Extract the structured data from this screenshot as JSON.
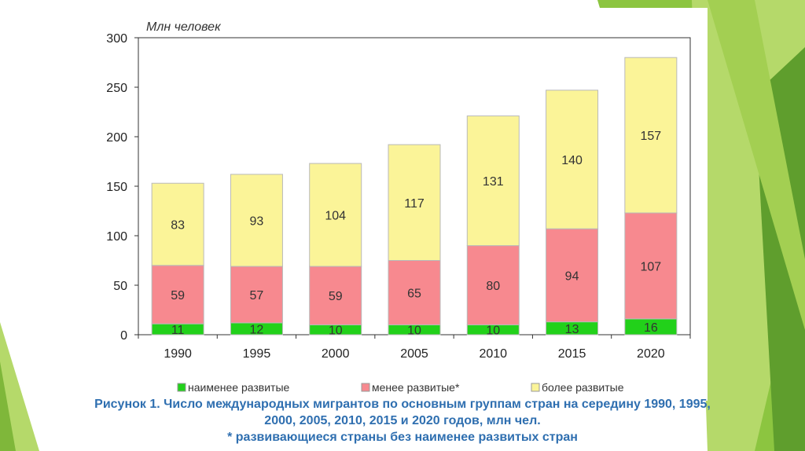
{
  "colors": {
    "background_green": "#8cc540",
    "band_light": "#b5d96a",
    "band_dark": "#5f9e2d",
    "least_developed": "#22d11a",
    "less_developed": "#f7898f",
    "more_developed": "#fbf498",
    "caption_text": "#2f6fb0"
  },
  "chart_data": {
    "type": "bar",
    "stacked": true,
    "ylabel": "Млн человек",
    "ylim": [
      0,
      300
    ],
    "yticks": [
      "0",
      "50",
      "100",
      "150",
      "200",
      "250",
      "300"
    ],
    "grid": false,
    "legend_position": "bottom",
    "categories": [
      "1990",
      "1995",
      "2000",
      "2005",
      "2010",
      "2015",
      "2020"
    ],
    "series": [
      {
        "name": "наименее развитые",
        "color": "#22d11a",
        "values": [
          11,
          12,
          10,
          10,
          10,
          13,
          16
        ]
      },
      {
        "name": "менее развитые*",
        "color": "#f7898f",
        "values": [
          59,
          57,
          59,
          65,
          80,
          94,
          107
        ]
      },
      {
        "name": "более развитые",
        "color": "#fbf498",
        "values": [
          83,
          93,
          104,
          117,
          131,
          140,
          157
        ]
      }
    ]
  },
  "caption": {
    "line1": "Рисунок 1. Число международных мигрантов по основным группам стран на середину 1990, 1995,",
    "line2": "2000, 2005, 2010, 2015 и 2020 годов, млн чел.",
    "line3": "* развивающиеся страны без наименее развитых стран"
  }
}
